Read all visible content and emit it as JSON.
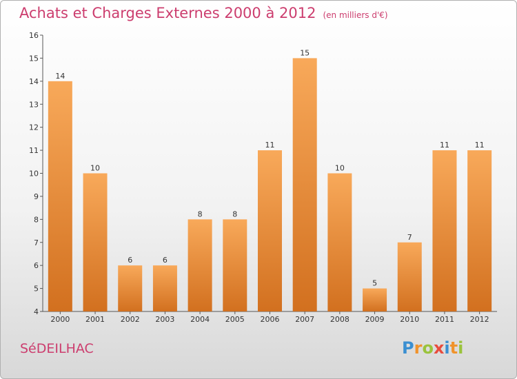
{
  "header": {
    "title": "Achats et Charges Externes 2000 à 2012",
    "subtitle": "(en milliers d'€)"
  },
  "footer": {
    "commune": "SéDEILHAC",
    "logo_letters": [
      {
        "ch": "P",
        "color": "#3a8fd1"
      },
      {
        "ch": "r",
        "color": "#f0932b"
      },
      {
        "ch": "o",
        "color": "#9ac33c"
      },
      {
        "ch": "x",
        "color": "#e84c3d"
      },
      {
        "ch": "i",
        "color": "#3a8fd1"
      },
      {
        "ch": "t",
        "color": "#f0932b"
      },
      {
        "ch": "i",
        "color": "#9ac33c"
      }
    ]
  },
  "chart_data": {
    "type": "bar",
    "title": "Achats et Charges Externes 2000 à 2012",
    "subtitle": "(en milliers d'€)",
    "categories": [
      "2000",
      "2001",
      "2002",
      "2003",
      "2004",
      "2005",
      "2006",
      "2007",
      "2008",
      "2009",
      "2010",
      "2011",
      "2012"
    ],
    "values": [
      14,
      10,
      6,
      6,
      8,
      8,
      11,
      15,
      10,
      5,
      7,
      11,
      11
    ],
    "ylim": [
      4,
      16
    ],
    "yticks": [
      4,
      5,
      6,
      7,
      8,
      9,
      10,
      11,
      12,
      13,
      14,
      15,
      16
    ],
    "grid": false,
    "data_labels": true,
    "colors": {
      "bar_top": "#f8a95a",
      "bar_bottom": "#d2701f",
      "axis": "#555555"
    }
  }
}
